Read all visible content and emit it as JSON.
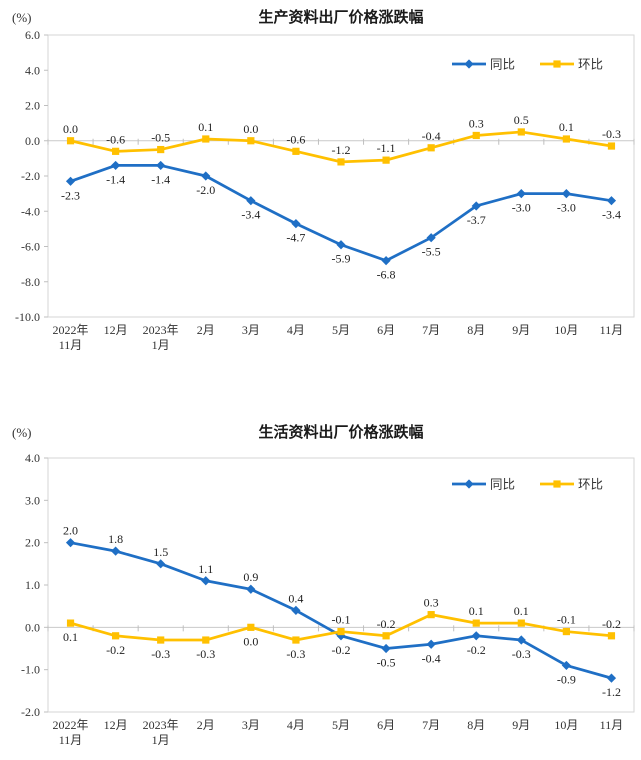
{
  "page": {
    "background": "#ffffff"
  },
  "colors": {
    "series_yoy": "#1F6FC5",
    "series_mom": "#FFC000",
    "plot_border": "#D6D6D6",
    "zero_line": "#C9C9C9",
    "tick": "#BFBFBF",
    "text": "#333333"
  },
  "chart_data": [
    {
      "type": "line",
      "title": "生产资料出厂价格涨跌幅",
      "unit_label": "(%)",
      "categories": [
        [
          "2022年",
          "11月"
        ],
        [
          "12月"
        ],
        [
          "2023年",
          "1月"
        ],
        [
          "2月"
        ],
        [
          "3月"
        ],
        [
          "4月"
        ],
        [
          "5月"
        ],
        [
          "6月"
        ],
        [
          "7月"
        ],
        [
          "8月"
        ],
        [
          "9月"
        ],
        [
          "10月"
        ],
        [
          "11月"
        ]
      ],
      "ylim": [
        -10.0,
        6.0
      ],
      "ytick_step": 2.0,
      "grid": "zero-line-only",
      "legend_position": "top-right",
      "series": [
        {
          "name": "同比",
          "color": "#1F6FC5",
          "marker": "diamond",
          "values": [
            -2.3,
            -1.4,
            -1.4,
            -2.0,
            -3.4,
            -4.7,
            -5.9,
            -6.8,
            -5.5,
            -3.7,
            -3.0,
            -3.0,
            -3.4
          ],
          "label_pos": [
            "below",
            "below",
            "below",
            "below",
            "below",
            "below",
            "below",
            "below",
            "below",
            "below",
            "below",
            "below",
            "below"
          ]
        },
        {
          "name": "环比",
          "color": "#FFC000",
          "marker": "square",
          "values": [
            0.0,
            -0.6,
            -0.5,
            0.1,
            0.0,
            -0.6,
            -1.2,
            -1.1,
            -0.4,
            0.3,
            0.5,
            0.1,
            -0.3
          ],
          "label_pos": [
            "above",
            "above",
            "above",
            "above",
            "above",
            "above",
            "above",
            "above",
            "above",
            "above",
            "above",
            "above",
            "above"
          ]
        }
      ]
    },
    {
      "type": "line",
      "title": "生活资料出厂价格涨跌幅",
      "unit_label": "(%)",
      "categories": [
        [
          "2022年",
          "11月"
        ],
        [
          "12月"
        ],
        [
          "2023年",
          "1月"
        ],
        [
          "2月"
        ],
        [
          "3月"
        ],
        [
          "4月"
        ],
        [
          "5月"
        ],
        [
          "6月"
        ],
        [
          "7月"
        ],
        [
          "8月"
        ],
        [
          "9月"
        ],
        [
          "10月"
        ],
        [
          "11月"
        ]
      ],
      "ylim": [
        -2.0,
        4.0
      ],
      "ytick_step": 1.0,
      "grid": "zero-line-only",
      "legend_position": "top-right",
      "series": [
        {
          "name": "同比",
          "color": "#1F6FC5",
          "marker": "diamond",
          "values": [
            2.0,
            1.8,
            1.5,
            1.1,
            0.9,
            0.4,
            -0.2,
            -0.5,
            -0.4,
            -0.2,
            -0.3,
            -0.9,
            -1.2
          ],
          "label_pos": [
            "above",
            "above",
            "above",
            "above",
            "above",
            "above",
            "below",
            "below",
            "below",
            "below",
            "below",
            "below",
            "below"
          ]
        },
        {
          "name": "环比",
          "color": "#FFC000",
          "marker": "square",
          "values": [
            0.1,
            -0.2,
            -0.3,
            -0.3,
            0.0,
            -0.3,
            -0.1,
            -0.2,
            0.3,
            0.1,
            0.1,
            -0.1,
            -0.2
          ],
          "label_pos": [
            "below",
            "below",
            "below",
            "below",
            "below",
            "below",
            "above",
            "above",
            "above",
            "above",
            "above",
            "above",
            "above"
          ]
        }
      ]
    }
  ]
}
